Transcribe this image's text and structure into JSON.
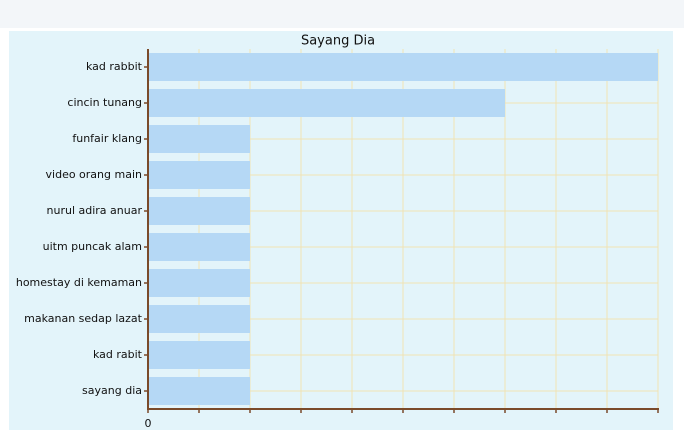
{
  "chart_data": {
    "type": "hbar",
    "title": "Sayang Dia",
    "categories": [
      "kad rabbit",
      "cincin tunang",
      "funfair klang",
      "video orang main",
      "nurul adira anuar",
      "uitm puncak alam",
      "homestay di kemaman",
      "makanan sedap lazat",
      "kad rabit",
      "sayang dia"
    ],
    "values": [
      10,
      7,
      2,
      2,
      2,
      2,
      2,
      2,
      2,
      2
    ],
    "color": "#b5d8f5",
    "xlim": [
      0,
      10
    ],
    "xticks": [
      0
    ],
    "xminorticks": [
      1,
      2,
      3,
      4,
      5,
      6,
      7,
      8,
      9,
      10
    ],
    "grid": true
  }
}
